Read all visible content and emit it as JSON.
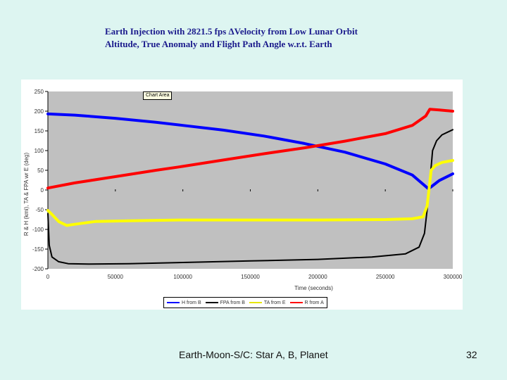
{
  "slide": {
    "title_line1": "Earth Injection with 2821.5 fps ΔVelocity from Low Lunar Orbit",
    "title_line2": "Altitude, True Anomaly and Flight Path Angle w.r.t.  Earth",
    "footer": "Earth-Moon-S/C: Star A, B, Planet",
    "page_number": "32",
    "background": "#ddf5f1"
  },
  "tooltip": {
    "label": "Chart Area"
  },
  "chart_data": {
    "type": "line",
    "title": "",
    "xlabel": "Time (seconds)",
    "ylabel": "R & H (kmi), TA & FPA wr E (deg)",
    "xlim": [
      0,
      300000
    ],
    "ylim": [
      -200,
      250
    ],
    "x_ticks": [
      0,
      50000,
      100000,
      150000,
      200000,
      250000,
      300000
    ],
    "x_tick_labels": [
      "0",
      "50000",
      "100000",
      "150000",
      "200000",
      "250000",
      "300000"
    ],
    "y_ticks": [
      250,
      200,
      150,
      100,
      50,
      0,
      -50,
      -100,
      -150,
      -200
    ],
    "y_tick_labels": [
      "250",
      "200",
      "150",
      "100",
      "50",
      "0",
      "-50",
      "-100",
      "-150",
      "-200"
    ],
    "grid": false,
    "plot_background": "#c0c0c0",
    "legend_position": "bottom",
    "series": [
      {
        "name": "H from B",
        "color": "#0000ff",
        "x": [
          0,
          20000,
          50000,
          80000,
          100000,
          130000,
          160000,
          190000,
          220000,
          250000,
          270000,
          282000,
          284000,
          290000,
          300000
        ],
        "y": [
          193,
          190,
          182,
          172,
          164,
          152,
          137,
          118,
          96,
          66,
          38,
          3,
          8,
          24,
          41
        ]
      },
      {
        "name": "FPA from B",
        "color": "#000000",
        "x": [
          0,
          1000,
          3000,
          8000,
          15000,
          30000,
          60000,
          100000,
          150000,
          200000,
          240000,
          265000,
          275000,
          279000,
          282000,
          285000,
          288000,
          292000,
          300000
        ],
        "y": [
          -60,
          -140,
          -170,
          -182,
          -187,
          -188,
          -187,
          -184,
          -180,
          -176,
          -170,
          -162,
          -145,
          -110,
          -20,
          100,
          125,
          140,
          153
        ]
      },
      {
        "name": "TA from E",
        "color": "#ffff00",
        "x": [
          0,
          3000,
          8000,
          14000,
          20000,
          35000,
          60000,
          100000,
          150000,
          200000,
          250000,
          270000,
          278000,
          281000,
          284000,
          287000,
          292000,
          300000
        ],
        "y": [
          -52,
          -62,
          -80,
          -90,
          -87,
          -80,
          -78,
          -76,
          -76,
          -76,
          -75,
          -73,
          -68,
          -40,
          50,
          62,
          70,
          75
        ]
      },
      {
        "name": "R from A",
        "color": "#ff0000",
        "x": [
          0,
          20000,
          50000,
          80000,
          100000,
          130000,
          160000,
          190000,
          220000,
          250000,
          270000,
          280000,
          283000,
          290000,
          300000
        ],
        "y": [
          5,
          18,
          34,
          50,
          60,
          76,
          92,
          107,
          124,
          143,
          164,
          188,
          205,
          203,
          200
        ]
      }
    ]
  }
}
